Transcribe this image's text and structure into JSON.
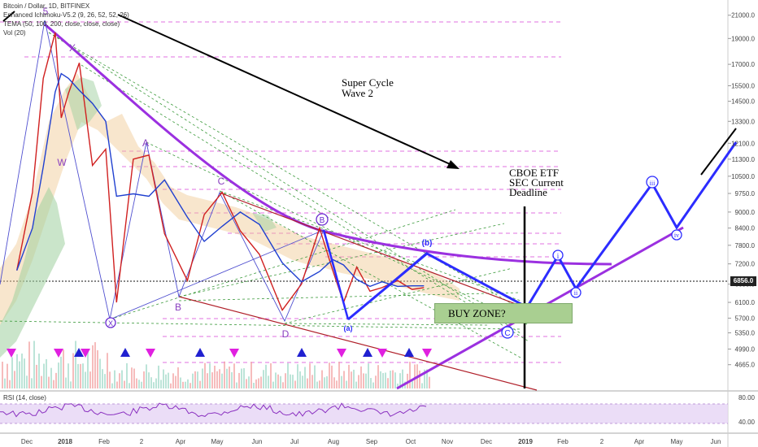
{
  "legend": {
    "title": "Bitcoin / Dollar, 1D, BITFINEX",
    "ichimoku": "Enhanced Ichimoku-V5.2 (9, 26, 52, 52, 26)",
    "tema": "TEMA (50, 100, 200, close, close, close)",
    "vol": "Vol (20)",
    "rsi": "RSI (14, close)"
  },
  "annotations": {
    "super_cycle_1": "Super Cycle",
    "super_cycle_2": "Wave 2",
    "cboe_1": "CBOE ETF",
    "cboe_2": "SEC Current",
    "cboe_3": "Deadline",
    "buy_zone": "BUY ZONE?"
  },
  "wave_labels": {
    "w": "W",
    "x": "X",
    "x_circ": "X",
    "five": "5",
    "a": "A",
    "b": "B",
    "c": "C",
    "d": "D",
    "b_circ": "B",
    "c_circ": "C",
    "small_a": "(a)",
    "small_b": "(b)",
    "i": "i",
    "ii": "ii",
    "iii": "iii",
    "iv": "iv"
  },
  "current_price": "6856.0",
  "chart_data": {
    "type": "line",
    "title": "Bitcoin / Dollar, 1D, BITFINEX",
    "xlabel": "",
    "ylabel": "",
    "y_scale": "log",
    "ylim": [
      4300,
      21500
    ],
    "x_ticks": [
      "Dec",
      "2018",
      "Feb",
      "2",
      "Apr",
      "May",
      "Jun",
      "Jul",
      "Aug",
      "Sep",
      "Oct",
      "Nov",
      "Dec",
      "2019",
      "Feb",
      "2",
      "Apr",
      "May",
      "Jun"
    ],
    "y_ticks": [
      "21000.0",
      "19000.0",
      "17000.0",
      "15500.0",
      "14500.0",
      "13300.0",
      "12100.0",
      "11300.0",
      "10500.0",
      "9750.0",
      "9000.0",
      "8400.0",
      "7800.0",
      "7200.0",
      "6600.0",
      "6100.0",
      "5700.0",
      "5350.0",
      "4990.0",
      "4665.0"
    ],
    "rsi_ticks": [
      "80.00",
      "40.00"
    ],
    "series": [
      {
        "name": "",
        "x": [
          "2017-11-15",
          "2017-11-28",
          "2017-12-07",
          "2017-12-17",
          "2017-12-22",
          "2017-12-28",
          "2018-01-06",
          "2018-01-17",
          "2018-01-28",
          "2018-02-06",
          "2018-02-20",
          "2018-03-05",
          "2018-03-18",
          "2018-04-06",
          "2018-04-20",
          "2018-05-05",
          "2018-05-20",
          "2018-06-05",
          "2018-06-24",
          "2018-07-10",
          "2018-07-25",
          "2018-08-05",
          "2018-08-14",
          "2018-08-25",
          "2018-09-05",
          "2018-09-15",
          "2018-09-28",
          "2018-10-10",
          "2018-10-20"
        ],
        "values": [
          7000,
          9800,
          16000,
          19500,
          13500,
          15000,
          17100,
          11000,
          11800,
          6100,
          11300,
          11500,
          8200,
          6700,
          8900,
          9800,
          8300,
          7500,
          5900,
          6600,
          8400,
          7000,
          6100,
          7100,
          6400,
          6500,
          6700,
          6450,
          6500
        ]
      }
    ]
  }
}
